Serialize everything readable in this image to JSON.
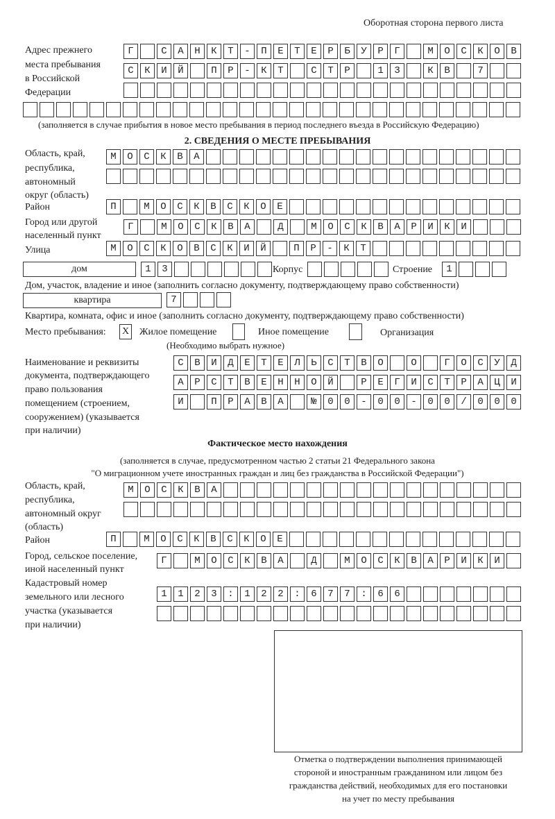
{
  "page_header": "Оборотная сторона первого листа",
  "previous_address": {
    "label_lines": [
      "Адрес прежнего",
      "места пребывания",
      "в Российской",
      "Федерации"
    ],
    "rows": [
      "Г САНКТ-ПЕТЕРБУРГ МОСКОВ",
      "СКИЙ ПР-КТ СТР 13 КВ 7  ",
      "                        ",
      "                              "
    ],
    "note": "(заполняется в случае прибытия в новое место пребывания в период последнего въезда в Российскую Федерацию)"
  },
  "section2": {
    "title": "2. СВЕДЕНИЯ О МЕСТЕ ПРЕБЫВАНИЯ",
    "region_label": [
      "Область, край,",
      "республика,",
      "автономный",
      "округ (область)"
    ],
    "region_rows": [
      "МОСКВА                   ",
      "                         "
    ],
    "district_label": "Район",
    "district_row": "П МОСКВСКОЕ              ",
    "city_label": [
      "Город или другой",
      "населенный пункт"
    ],
    "city_row": "Г МОСКВА Д МОСКВАРИКИ   ",
    "street_label": "Улица",
    "street_row": "МОСКОВСКИЙ ПР-КТ         ",
    "house_type": "дом",
    "house_row": "13      ",
    "korpus_label": "Корпус",
    "korpus_row": "     ",
    "building_label": "Строение",
    "building_row": "1   ",
    "house_note": "Дом, участок, владение и иное (заполнить согласно документу, подтверждающему право собственности)",
    "apartment_type": "квартира",
    "apartment_row": "7   ",
    "apartment_note": "Квартира, комната, офис и иное (заполнить согласно документу, подтверждающему право собственности)",
    "stay_place_label": "Место пребывания:",
    "stay_options": [
      {
        "label": "Жилое помещение",
        "mark": "X"
      },
      {
        "label": "Иное помещение",
        "mark": ""
      },
      {
        "label": "Организация",
        "mark": ""
      }
    ],
    "stay_note": "(Необходимо выбрать нужное)",
    "doc_label": [
      "Наименование и реквизиты",
      "документа, подтверждающего",
      "право пользования",
      "помещением (строением,",
      "сооружением) (указывается",
      "при наличии)"
    ],
    "doc_rows": [
      "СВИДЕТЕЛЬСТВО О ГОСУД",
      "АРСТВЕННОЙ РЕГИСТРАЦИ",
      "И ПРАВА №00-00-00/000"
    ]
  },
  "actual_location": {
    "title": "Фактическое место нахождения",
    "note_lines": [
      "(заполняется в случае, предусмотренном частью 2 статьи 21 Федерального закона",
      "\"О миграционном учете иностранных граждан и лиц без гражданства в Российской Федерации\")"
    ],
    "region_label": [
      "Область, край,",
      "республика,",
      "автономный округ",
      "(область)"
    ],
    "region_rows": [
      "МОСКВА                  ",
      "                        "
    ],
    "district_label": "Район",
    "district_row": "П МОСКВСКОЕ              ",
    "city_label": [
      "Город, сельское поселение,",
      "иной населенный пункт"
    ],
    "city_row": "Г МОСКВА Д МОСКВАРИКИ ",
    "cadastral_label": [
      "Кадастровый номер",
      "земельного или лесного",
      "участка (указывается",
      "при наличии)"
    ],
    "cadastral_rows": [
      "1123:122:677:66       ",
      "                      "
    ]
  },
  "confirmation": {
    "caption_lines": [
      "Отметка о подтверждении выполнения принимающей",
      "стороной и иностранным гражданином или лицом без",
      "гражданства действий, необходимых для его постановки",
      "на учет по месту пребывания"
    ]
  }
}
